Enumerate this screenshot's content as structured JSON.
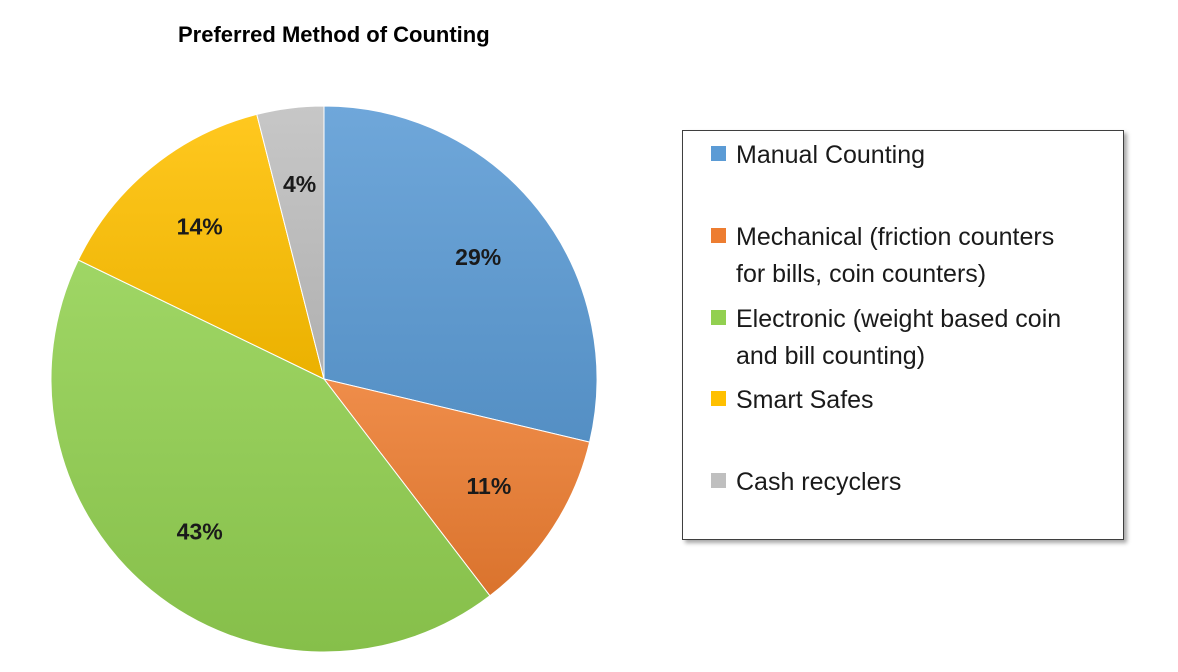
{
  "chart_data": {
    "type": "pie",
    "title": "Preferred Method of Counting",
    "categories": [
      "Manual Counting",
      "Mechanical (friction counters for bills, coin counters)",
      "Electronic (weight based coin and bill counting)",
      "Smart Safes",
      "Cash recyclers"
    ],
    "values": [
      29,
      11,
      43,
      14,
      4
    ],
    "labels": [
      "29%",
      "11%",
      "43%",
      "14%",
      "4%"
    ],
    "colors": [
      "#5b9bd5",
      "#ed7d31",
      "#92d050",
      "#ffc000",
      "#bfbfbf"
    ],
    "legend_position": "right",
    "legend_lines": [
      [
        "Manual Counting"
      ],
      [
        "Mechanical (friction counters",
        "for bills, coin counters)"
      ],
      [
        "Electronic (weight based coin",
        "and bill counting)"
      ],
      [
        "Smart Safes"
      ],
      [
        "Cash recyclers"
      ]
    ]
  }
}
